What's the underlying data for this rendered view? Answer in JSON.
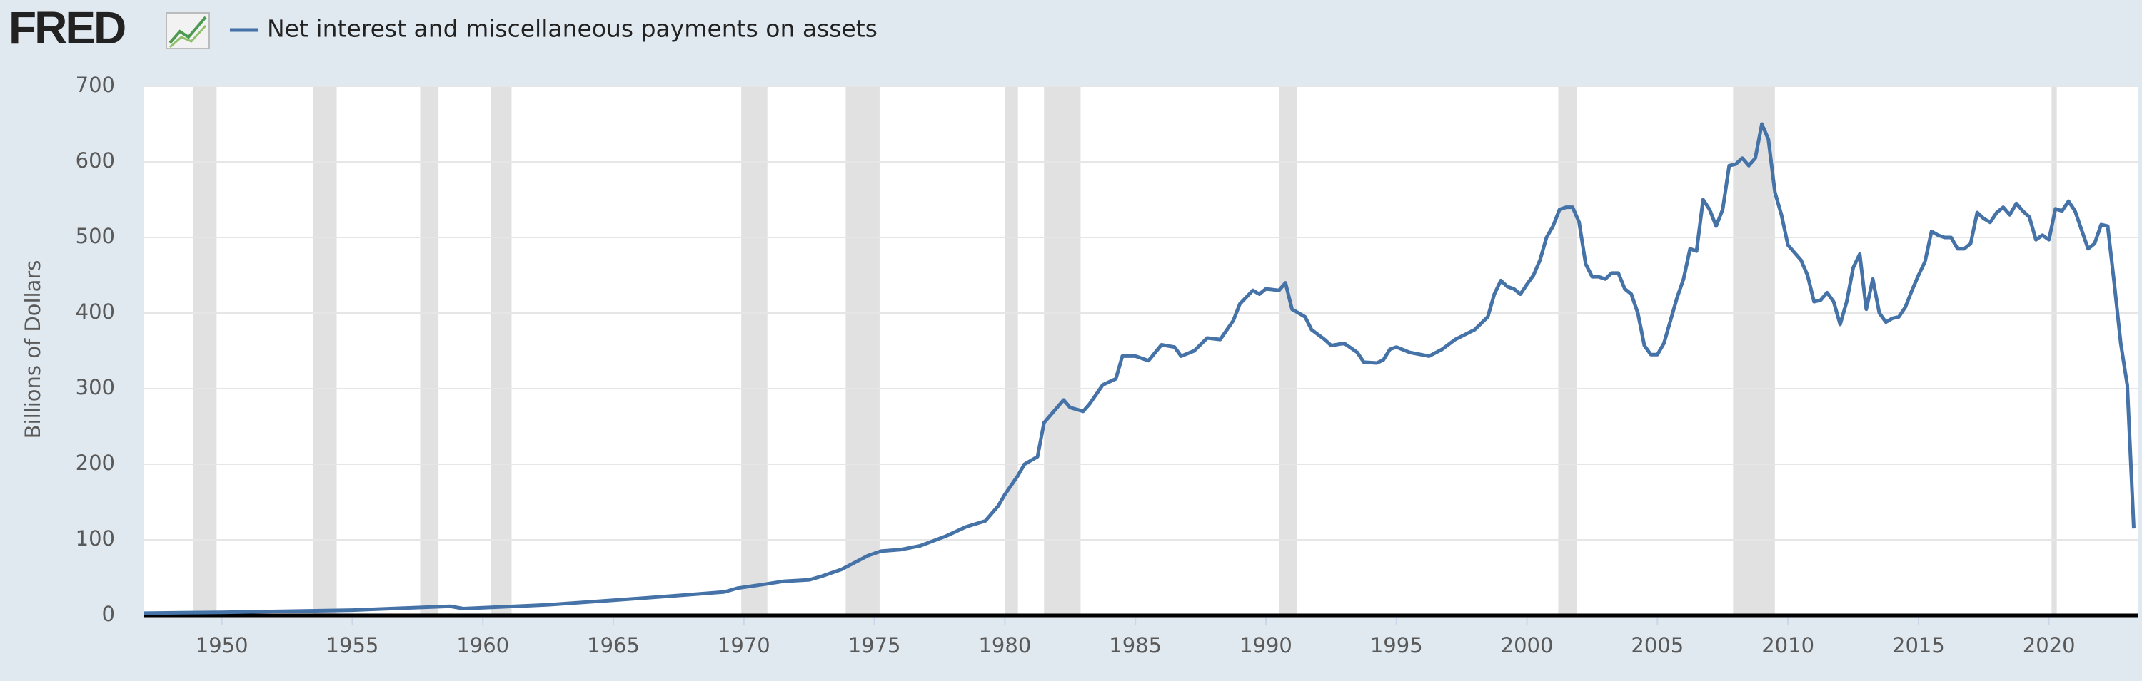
{
  "logo": "FRED",
  "chart_data": {
    "type": "line",
    "yaxis_label": "Billions of Dollars",
    "xlim": [
      1947,
      2023.4
    ],
    "xticks": [
      1950,
      1955,
      1960,
      1965,
      1970,
      1975,
      1980,
      1985,
      1990,
      1995,
      2000,
      2005,
      2010,
      2015,
      2020
    ],
    "ylim": [
      0,
      700
    ],
    "yticks": [
      0,
      100,
      200,
      300,
      400,
      500,
      600,
      700
    ],
    "grid": true,
    "legend": "top-left",
    "recession_color": "#e1e1e1",
    "recessions": [
      [
        1948.9,
        1949.8
      ],
      [
        1953.5,
        1954.4
      ],
      [
        1957.6,
        1958.3
      ],
      [
        1960.3,
        1961.1
      ],
      [
        1969.9,
        1970.9
      ],
      [
        1973.9,
        1975.2
      ],
      [
        1980.0,
        1980.5
      ],
      [
        1981.5,
        1982.9
      ],
      [
        1990.5,
        1991.2
      ],
      [
        2001.2,
        2001.9
      ],
      [
        2007.9,
        2009.5
      ],
      [
        2020.1,
        2020.3
      ]
    ],
    "x": [
      1947,
      1950,
      1955,
      1958.75,
      1959.25,
      1962.5,
      1965,
      1967.75,
      1969.25,
      1969.75,
      1970.75,
      1971.5,
      1972.5,
      1973,
      1973.75,
      1974.75,
      1975.25,
      1976,
      1976.75,
      1977.75,
      1978.5,
      1979.25,
      1979.75,
      1980,
      1980.5,
      1980.75,
      1981.25,
      1981.5,
      1981.75,
      1982.25,
      1982.5,
      1983,
      1983.25,
      1983.75,
      1984.25,
      1984.5,
      1985,
      1985.5,
      1986,
      1986.5,
      1986.75,
      1987.25,
      1987.75,
      1988.25,
      1988.75,
      1989,
      1989.5,
      1989.75,
      1990,
      1990.5,
      1990.75,
      1991,
      1991.5,
      1991.75,
      1992.25,
      1992.5,
      1993,
      1993.5,
      1993.75,
      1994.25,
      1994.5,
      1994.75,
      1995,
      1995.5,
      1996.25,
      1996.75,
      1997.25,
      1998,
      1998.5,
      1998.75,
      1999,
      1999.25,
      1999.5,
      1999.75,
      2000,
      2000.25,
      2000.5,
      2000.75,
      2001,
      2001.25,
      2001.5,
      2001.75,
      2002,
      2002.25,
      2002.5,
      2002.75,
      2003,
      2003.25,
      2003.5,
      2003.75,
      2004,
      2004.25,
      2004.5,
      2004.75,
      2005,
      2005.25,
      2005.5,
      2005.75,
      2006,
      2006.25,
      2006.5,
      2006.75,
      2007,
      2007.25,
      2007.5,
      2007.75,
      2008,
      2008.25,
      2008.5,
      2008.75,
      2009,
      2009.25,
      2009.5,
      2009.75,
      2010,
      2010.25,
      2010.5,
      2010.75,
      2011,
      2011.25,
      2011.5,
      2011.75,
      2012,
      2012.25,
      2012.5,
      2012.75,
      2013,
      2013.25,
      2013.5,
      2013.75,
      2014,
      2014.25,
      2014.5,
      2014.75,
      2015,
      2015.25,
      2015.5,
      2015.75,
      2016,
      2016.25,
      2016.5,
      2016.75,
      2017,
      2017.25,
      2017.5,
      2017.75,
      2018,
      2018.25,
      2018.5,
      2018.75,
      2019,
      2019.25,
      2019.5,
      2019.75,
      2020,
      2020.25,
      2020.5,
      2020.75,
      2021,
      2021.25,
      2021.5,
      2021.75,
      2022,
      2022.25,
      2022.5,
      2022.75,
      2023,
      2023.25
    ],
    "series": [
      {
        "name": "Net interest and miscellaneous payments on assets",
        "color": "#4572a7",
        "values": [
          3,
          4,
          7,
          12,
          9,
          14,
          20,
          27,
          31,
          36,
          41,
          45,
          47,
          52,
          61,
          79,
          85,
          87,
          92,
          105,
          117,
          125,
          145,
          160,
          185,
          200,
          210,
          255,
          265,
          285,
          275,
          270,
          280,
          305,
          313,
          343,
          343,
          337,
          358,
          355,
          343,
          350,
          367,
          365,
          390,
          412,
          430,
          425,
          432,
          430,
          440,
          405,
          395,
          378,
          365,
          357,
          360,
          348,
          335,
          334,
          338,
          352,
          355,
          348,
          343,
          352,
          365,
          378,
          395,
          425,
          443,
          435,
          432,
          425,
          438,
          450,
          470,
          500,
          515,
          537,
          540,
          540,
          520,
          465,
          448,
          448,
          445,
          453,
          453,
          432,
          425,
          400,
          357,
          345,
          345,
          360,
          390,
          420,
          445,
          485,
          482,
          550,
          537,
          515,
          537,
          595,
          597,
          605,
          595,
          605,
          650,
          630,
          560,
          530,
          490,
          480,
          470,
          450,
          415,
          417,
          427,
          415,
          385,
          415,
          460,
          478,
          405,
          445,
          400,
          388,
          393,
          395,
          408,
          430,
          450,
          468,
          508,
          503,
          500,
          500,
          485,
          485,
          492,
          533,
          525,
          520,
          533,
          540,
          530,
          545,
          535,
          527,
          497,
          503,
          497,
          538,
          535,
          548,
          535,
          510,
          485,
          492,
          517,
          515,
          440,
          360,
          305,
          115
        ]
      }
    ]
  }
}
